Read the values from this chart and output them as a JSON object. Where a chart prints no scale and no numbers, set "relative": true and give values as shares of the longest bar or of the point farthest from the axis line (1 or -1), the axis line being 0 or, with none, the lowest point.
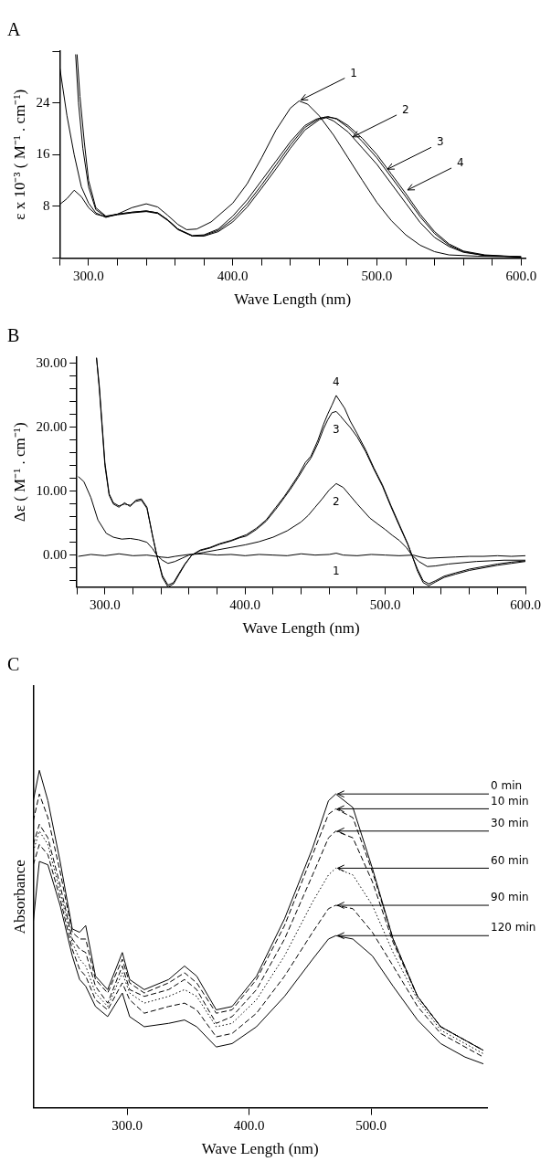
{
  "chart_data": [
    {
      "type": "line",
      "title": "A",
      "xlabel": "Wave Length (nm)",
      "ylabel": "ε x 10⁻³ ( M⁻¹ . cm⁻¹)",
      "xlim": [
        280,
        603
      ],
      "xticks": [
        {
          "value": 280,
          "label": null
        },
        {
          "value": 300,
          "label": "300.0"
        },
        {
          "value": 320,
          "label": null
        },
        {
          "value": 340,
          "label": null
        },
        {
          "value": 360,
          "label": null
        },
        {
          "value": 380,
          "label": null
        },
        {
          "value": 400,
          "label": "400.0"
        },
        {
          "value": 420,
          "label": null
        },
        {
          "value": 440,
          "label": null
        },
        {
          "value": 460,
          "label": null
        },
        {
          "value": 480,
          "label": null
        },
        {
          "value": 500,
          "label": "500.0"
        },
        {
          "value": 520,
          "label": null
        },
        {
          "value": 540,
          "label": null
        },
        {
          "value": 560,
          "label": null
        },
        {
          "value": 580,
          "label": null
        },
        {
          "value": 600,
          "label": "600.0"
        }
      ],
      "ylim": [
        0,
        32
      ],
      "yticks": [
        {
          "value": 0,
          "label": null
        },
        8,
        16,
        24,
        {
          "value": 32,
          "label": null
        }
      ],
      "series": [
        {
          "color": "#000000",
          "x": [
            280,
            285,
            290,
            295,
            300,
            305,
            312,
            320,
            330,
            340,
            348,
            355,
            362,
            368,
            375,
            385,
            400,
            410,
            420,
            430,
            440,
            446,
            452,
            460,
            470,
            480,
            490,
            500,
            510,
            520,
            530,
            540,
            550,
            570,
            600
          ],
          "values": [
            29.5,
            22,
            16,
            11,
            8.5,
            7.0,
            6.3,
            6.8,
            7.8,
            8.4,
            7.9,
            6.6,
            5.2,
            4.4,
            4.5,
            5.6,
            8.5,
            11.5,
            15.5,
            19.8,
            23.2,
            24.3,
            23.8,
            22,
            19,
            15.5,
            12,
            8.6,
            5.8,
            3.6,
            2.0,
            1.0,
            0.5,
            0.3,
            0.2
          ]
        },
        {
          "color": "#000000",
          "x": [
            280,
            285,
            290,
            295,
            300,
            305,
            312,
            320,
            330,
            340,
            348,
            355,
            362,
            372,
            380,
            390,
            400,
            410,
            420,
            430,
            440,
            450,
            458,
            464,
            470,
            480,
            490,
            500,
            510,
            520,
            530,
            540,
            550,
            560,
            575,
            600
          ],
          "values": [
            8.3,
            9.2,
            10.5,
            9.5,
            7.8,
            6.8,
            6.4,
            6.8,
            7.1,
            7.3,
            7.0,
            5.9,
            4.5,
            3.5,
            3.6,
            4.5,
            6.5,
            9.0,
            12,
            15,
            18,
            20.5,
            21.5,
            21.8,
            21.2,
            19.5,
            17,
            14.5,
            11.5,
            8.5,
            5.5,
            3.2,
            1.8,
            0.9,
            0.4,
            0.2
          ]
        },
        {
          "color": "#000000",
          "x": [
            291,
            293,
            296,
            300,
            305,
            312,
            320,
            330,
            340,
            348,
            355,
            362,
            372,
            380,
            390,
            400,
            410,
            420,
            430,
            440,
            450,
            460,
            466,
            472,
            480,
            490,
            500,
            510,
            520,
            530,
            540,
            550,
            560,
            575,
            600
          ],
          "values": [
            31.5,
            24,
            17,
            11,
            7.5,
            6.4,
            6.7,
            7.0,
            7.2,
            6.9,
            5.8,
            4.4,
            3.4,
            3.5,
            4.3,
            6.0,
            8.4,
            11.3,
            14.4,
            17.5,
            20.2,
            21.6,
            21.9,
            21.5,
            20.2,
            18,
            15.5,
            12.5,
            9.5,
            6.4,
            3.8,
            2.0,
            1.0,
            0.4,
            0.2
          ]
        },
        {
          "color": "#000000",
          "x": [
            292,
            294,
            297,
            300,
            305,
            312,
            320,
            330,
            340,
            348,
            355,
            362,
            372,
            380,
            390,
            400,
            410,
            420,
            430,
            440,
            450,
            460,
            466,
            472,
            480,
            490,
            500,
            510,
            520,
            530,
            540,
            550,
            560,
            575,
            600
          ],
          "values": [
            31.5,
            25,
            18,
            12,
            7.8,
            6.5,
            6.8,
            7.1,
            7.3,
            7.0,
            5.9,
            4.5,
            3.4,
            3.4,
            4.1,
            5.6,
            7.9,
            10.8,
            13.8,
            17.0,
            19.8,
            21.4,
            21.8,
            21.6,
            20.5,
            18.5,
            16,
            13,
            10,
            6.8,
            4.1,
            2.2,
            1.1,
            0.5,
            0.2
          ]
        }
      ],
      "annotations": [
        {
          "text": "1",
          "x": 446,
          "y": 24.3
        },
        {
          "text": "2",
          "x": 482,
          "y": 18.6
        },
        {
          "text": "3",
          "x": 506,
          "y": 13.6
        },
        {
          "text": "4",
          "x": 520,
          "y": 10.4
        }
      ]
    },
    {
      "type": "line",
      "title": "B",
      "xlabel": "Wave Length (nm)",
      "ylabel": "Δε ( M⁻¹ . cm⁻¹)",
      "xlim": [
        280,
        600
      ],
      "xticks": [
        {
          "value": 280,
          "label": null
        },
        {
          "value": 300,
          "label": "300.0"
        },
        {
          "value": 320,
          "label": null
        },
        {
          "value": 340,
          "label": null
        },
        {
          "value": 360,
          "label": null
        },
        {
          "value": 380,
          "label": null
        },
        {
          "value": 400,
          "label": "400.0"
        },
        {
          "value": 420,
          "label": null
        },
        {
          "value": 440,
          "label": null
        },
        {
          "value": 460,
          "label": null
        },
        {
          "value": 480,
          "label": null
        },
        {
          "value": 500,
          "label": "500.0"
        },
        {
          "value": 520,
          "label": null
        },
        {
          "value": 540,
          "label": null
        },
        {
          "value": 560,
          "label": null
        },
        {
          "value": 580,
          "label": null
        },
        {
          "value": 600,
          "label": "600.0"
        }
      ],
      "ylim": [
        -5,
        31
      ],
      "yticks": [
        {
          "value": -4,
          "label": null
        },
        {
          "value": -2,
          "label": null
        },
        {
          "value": 0,
          "label": "0.00"
        },
        {
          "value": 2,
          "label": null
        },
        {
          "value": 4,
          "label": null
        },
        {
          "value": 6,
          "label": null
        },
        {
          "value": 8,
          "label": null
        },
        {
          "value": 10,
          "label": "10.00"
        },
        {
          "value": 12,
          "label": null
        },
        {
          "value": 14,
          "label": null
        },
        {
          "value": 16,
          "label": null
        },
        {
          "value": 18,
          "label": null
        },
        {
          "value": 20,
          "label": "20.00"
        },
        {
          "value": 22,
          "label": null
        },
        {
          "value": 24,
          "label": null
        },
        {
          "value": 26,
          "label": null
        },
        {
          "value": 28,
          "label": null
        },
        {
          "value": 30,
          "label": "30.00"
        }
      ],
      "series": [
        {
          "name": "1",
          "color": "#000000",
          "x": [
            281,
            290,
            300,
            310,
            320,
            330,
            340,
            345,
            350,
            360,
            370,
            380,
            390,
            400,
            410,
            420,
            430,
            440,
            450,
            460,
            465,
            470,
            480,
            490,
            500,
            510,
            520,
            525,
            530,
            540,
            550,
            560,
            570,
            580,
            590,
            600
          ],
          "values": [
            -0.2,
            0.1,
            -0.1,
            0.2,
            -0.1,
            0,
            -0.3,
            -0.4,
            -0.2,
            0.1,
            0.2,
            0,
            0.1,
            -0.1,
            0.1,
            0,
            -0.1,
            0.2,
            0,
            0.1,
            0.3,
            0,
            -0.1,
            0.1,
            0,
            -0.1,
            0,
            -0.3,
            -0.5,
            -0.4,
            -0.3,
            -0.2,
            -0.2,
            -0.1,
            -0.2,
            -0.1
          ]
        },
        {
          "name": "2",
          "color": "#000000",
          "x": [
            281,
            285,
            290,
            295,
            301,
            306,
            312,
            318,
            324,
            330,
            334,
            337,
            341,
            345,
            350,
            355,
            360,
            370,
            380,
            390,
            400,
            410,
            420,
            430,
            440,
            445,
            450,
            455,
            460,
            465,
            470,
            475,
            480,
            489,
            495,
            500,
            505,
            510,
            515,
            519,
            524,
            530,
            536,
            545,
            555,
            565,
            575,
            585,
            600
          ],
          "values": [
            12.3,
            11.5,
            9.0,
            5.5,
            3.4,
            2.8,
            2.5,
            2.6,
            2.4,
            2.0,
            1.0,
            0,
            -0.8,
            -1.3,
            -1.0,
            -0.5,
            0,
            0.4,
            0.8,
            1.2,
            1.6,
            2.1,
            2.8,
            3.8,
            5.2,
            6.2,
            7.5,
            8.8,
            10.2,
            11.2,
            10.6,
            9.3,
            8.0,
            5.8,
            4.8,
            4.0,
            3.1,
            2.3,
            1.2,
            0,
            -1.0,
            -1.8,
            -1.7,
            -1.4,
            -1.2,
            -1.0,
            -0.9,
            -0.8,
            -0.8
          ]
        },
        {
          "color": "#000000",
          "x": [
            294,
            296,
            298,
            300,
            303,
            306,
            310,
            314,
            318,
            322,
            326,
            330,
            334,
            337,
            341,
            345,
            349,
            353,
            357,
            362,
            368,
            375,
            382,
            390,
            396,
            401,
            408,
            415,
            422,
            428,
            432,
            438,
            443,
            447,
            452,
            456,
            459,
            462,
            465,
            468,
            471,
            475,
            480,
            486,
            492,
            498,
            504,
            510,
            516,
            519,
            523,
            527,
            531,
            536,
            542,
            550,
            560,
            570,
            580,
            590,
            600
          ],
          "name": "3",
          "values": [
            30.9,
            26.5,
            20.5,
            14.5,
            9.6,
            8.2,
            7.7,
            8.0,
            7.8,
            8.4,
            8.6,
            7.3,
            3,
            0,
            -3.2,
            -4.7,
            -4.3,
            -2.8,
            -1.4,
            0,
            0.7,
            1.1,
            1.7,
            2.2,
            2.7,
            3.0,
            4.0,
            5.3,
            7.2,
            9.0,
            10.2,
            12.2,
            14.0,
            15.2,
            17.5,
            19.8,
            21.2,
            22.3,
            22.5,
            21.8,
            21,
            20,
            18.5,
            16.2,
            13.4,
            10.8,
            7.6,
            4.6,
            1.7,
            0,
            -2.2,
            -4.0,
            -4.5,
            -4.0,
            -3.3,
            -2.8,
            -2.2,
            -1.8,
            -1.4,
            -1.1,
            -0.9
          ]
        },
        {
          "color": "#000000",
          "x": [
            294,
            296,
            298,
            300,
            303,
            306,
            310,
            314,
            318,
            322,
            326,
            330,
            334,
            337,
            341,
            345,
            349,
            353,
            357,
            362,
            368,
            375,
            382,
            390,
            396,
            401,
            408,
            415,
            422,
            428,
            432,
            438,
            443,
            447,
            452,
            456,
            459,
            462,
            465,
            468,
            471,
            475,
            480,
            486,
            492,
            498,
            504,
            510,
            516,
            519,
            523,
            527,
            531,
            536,
            542,
            550,
            560,
            570,
            580,
            590,
            600
          ],
          "name": "4",
          "values": [
            30.9,
            26,
            20,
            14,
            9.4,
            8.0,
            7.5,
            8.2,
            7.6,
            8.6,
            8.8,
            7.5,
            3,
            0,
            -3.5,
            -5,
            -4.5,
            -3,
            -1.5,
            0,
            0.8,
            1.2,
            1.8,
            2.3,
            2.8,
            3.2,
            4.2,
            5.5,
            7.5,
            9.2,
            10.5,
            12.5,
            14.5,
            15.5,
            18,
            20.5,
            22.1,
            23.5,
            25,
            24,
            23,
            21,
            19,
            16.5,
            13.6,
            11,
            7.8,
            4.8,
            1.8,
            0,
            -2.5,
            -4.3,
            -4.8,
            -4.2,
            -3.5,
            -3.0,
            -2.4,
            -2,
            -1.6,
            -1.3,
            -1
          ]
        }
      ],
      "legend": false
    },
    {
      "type": "line",
      "title": "C",
      "xlabel": "Wave Length (nm)",
      "ylabel": "Absorbance",
      "relative": true,
      "xlim": [
        223,
        595
      ],
      "xticks": [
        {
          "value": 300,
          "label": "300.0"
        },
        {
          "value": 400,
          "label": "400.0"
        },
        {
          "value": 500,
          "label": "500.0"
        }
      ],
      "x": [
        223,
        228,
        235,
        245,
        255,
        261,
        266,
        274,
        284,
        296,
        302,
        314,
        334,
        347,
        357,
        373,
        386,
        406,
        429,
        452,
        465,
        471,
        485,
        501,
        518,
        538,
        557,
        577,
        592
      ],
      "series": [
        {
          "name": "0 min",
          "color": "#000000",
          "line_style": "solid",
          "values": [
            0.91,
            1.0,
            0.91,
            0.73,
            0.53,
            0.52,
            0.54,
            0.39,
            0.35,
            0.46,
            0.38,
            0.35,
            0.38,
            0.42,
            0.39,
            0.29,
            0.3,
            0.39,
            0.56,
            0.77,
            0.91,
            0.93,
            0.89,
            0.71,
            0.5,
            0.33,
            0.24,
            0.2,
            0.17
          ]
        },
        {
          "name": "10 min",
          "color": "#000000",
          "line_style": "dashed",
          "values": [
            0.85,
            0.93,
            0.86,
            0.7,
            0.52,
            0.5,
            0.5,
            0.38,
            0.34,
            0.44,
            0.37,
            0.34,
            0.37,
            0.4,
            0.37,
            0.28,
            0.29,
            0.38,
            0.54,
            0.75,
            0.87,
            0.886,
            0.86,
            0.7,
            0.5,
            0.33,
            0.24,
            0.2,
            0.17
          ]
        },
        {
          "name": "30 min",
          "color": "#000000",
          "line_style": "dashed",
          "values": [
            0.78,
            0.84,
            0.8,
            0.66,
            0.5,
            0.47,
            0.46,
            0.36,
            0.31,
            0.42,
            0.35,
            0.33,
            0.35,
            0.38,
            0.35,
            0.25,
            0.27,
            0.35,
            0.5,
            0.69,
            0.8,
            0.82,
            0.8,
            0.67,
            0.49,
            0.33,
            0.24,
            0.2,
            0.17
          ]
        },
        {
          "name": "60 min",
          "color": "#000000",
          "line_style": "dotted",
          "values": [
            0.76,
            0.82,
            0.78,
            0.64,
            0.49,
            0.44,
            0.42,
            0.34,
            0.3,
            0.4,
            0.34,
            0.31,
            0.33,
            0.35,
            0.33,
            0.24,
            0.25,
            0.32,
            0.45,
            0.61,
            0.69,
            0.71,
            0.69,
            0.6,
            0.46,
            0.32,
            0.23,
            0.19,
            0.16
          ]
        },
        {
          "name": "90 min",
          "color": "#000000",
          "line_style": "dashed",
          "values": [
            0.72,
            0.78,
            0.75,
            0.62,
            0.47,
            0.41,
            0.39,
            0.32,
            0.29,
            0.37,
            0.32,
            0.28,
            0.3,
            0.31,
            0.29,
            0.21,
            0.22,
            0.28,
            0.39,
            0.52,
            0.59,
            0.6,
            0.59,
            0.52,
            0.42,
            0.3,
            0.22,
            0.18,
            0.15
          ]
        },
        {
          "name": "120 min",
          "color": "#000000",
          "line_style": "solid",
          "values": [
            0.55,
            0.73,
            0.72,
            0.6,
            0.45,
            0.38,
            0.36,
            0.3,
            0.27,
            0.34,
            0.27,
            0.24,
            0.25,
            0.26,
            0.24,
            0.18,
            0.19,
            0.24,
            0.33,
            0.44,
            0.5,
            0.51,
            0.5,
            0.45,
            0.36,
            0.26,
            0.19,
            0.15,
            0.13
          ]
        }
      ]
    }
  ]
}
